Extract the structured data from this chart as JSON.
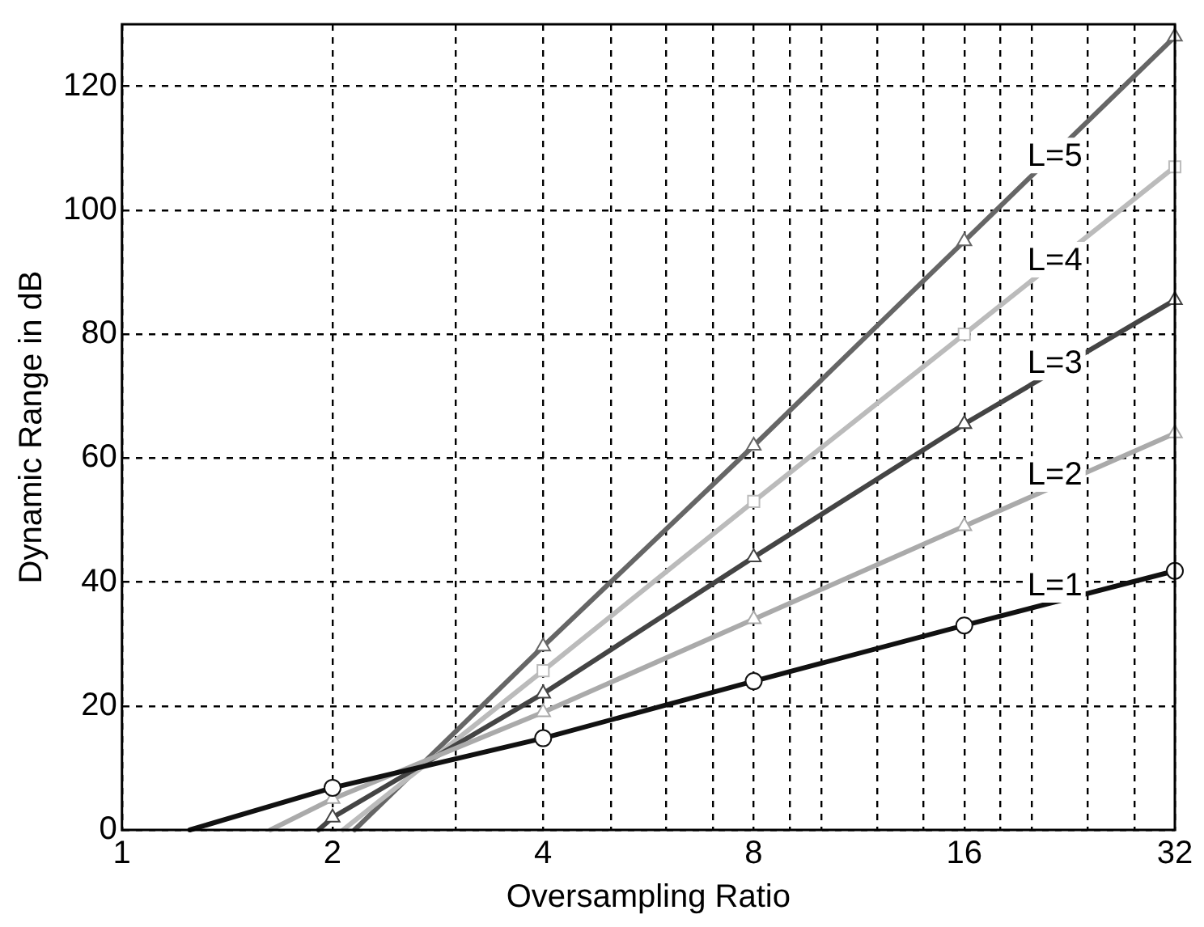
{
  "chart_data": {
    "type": "line",
    "xlabel": "Oversampling Ratio",
    "ylabel": "Dynamic Range in dB",
    "log": "x",
    "grid": true,
    "legend": false,
    "line_style": "solid",
    "xlim": [
      1,
      32
    ],
    "xticks": [
      1,
      2,
      {
        "value": 3,
        "label": null
      },
      4,
      {
        "value": 5,
        "label": null
      },
      {
        "value": 6,
        "label": null
      },
      {
        "value": 7,
        "label": null
      },
      8,
      {
        "value": 9,
        "label": null
      },
      {
        "value": 10,
        "label": null
      },
      {
        "value": 12,
        "label": null
      },
      {
        "value": 14,
        "label": null
      },
      16,
      {
        "value": 18,
        "label": null
      },
      {
        "value": 20,
        "label": null
      },
      {
        "value": 24,
        "label": null
      },
      {
        "value": 28,
        "label": null
      },
      32
    ],
    "ylim": [
      0,
      130
    ],
    "yticks": [
      0,
      20,
      40,
      60,
      80,
      100,
      120
    ],
    "series": [
      {
        "name": "L=1",
        "color": "#111111",
        "marker": "circle",
        "x": [
          1.25,
          2,
          4,
          8,
          16,
          32
        ],
        "values": [
          0,
          6.8,
          14.8,
          24,
          33,
          41.8
        ]
      },
      {
        "name": "L=2",
        "color": "#aaaaaa",
        "marker": "triangle",
        "x": [
          1.63,
          2,
          4,
          8,
          16,
          32
        ],
        "values": [
          0,
          5,
          19,
          34,
          49,
          64
        ]
      },
      {
        "name": "L=3",
        "color": "#444444",
        "marker": "triangle",
        "x": [
          1.91,
          2,
          4,
          8,
          16,
          32
        ],
        "values": [
          0,
          2,
          22,
          44,
          65.5,
          85.5
        ]
      },
      {
        "name": "L=4",
        "color": "#bbbbbb",
        "marker": "square",
        "x": [
          2.07,
          4,
          8,
          16,
          32
        ],
        "values": [
          0,
          25.7,
          53,
          80,
          107
        ]
      },
      {
        "name": "L=5",
        "color": "#666666",
        "marker": "triangle",
        "x": [
          2.15,
          4,
          8,
          16,
          32
        ],
        "values": [
          0,
          29.6,
          62,
          95,
          128
        ]
      }
    ]
  }
}
